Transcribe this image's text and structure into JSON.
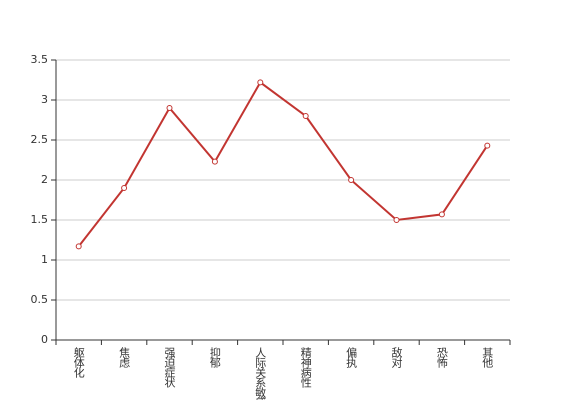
{
  "chart_data": {
    "type": "line",
    "categories": [
      "躯体化",
      "焦虑",
      "强迫症状",
      "抑郁",
      "人际关系敏感",
      "精神病性",
      "偏执",
      "敌对",
      "恐怖",
      "其他"
    ],
    "values": [
      1.17,
      1.9,
      2.9,
      2.23,
      3.22,
      2.8,
      2.0,
      1.5,
      1.57,
      2.43
    ],
    "color": "#c23531",
    "ylim": [
      0,
      3.5
    ],
    "yticks": [
      0,
      0.5,
      1,
      1.5,
      2,
      2.5,
      3,
      3.5
    ],
    "grid": true
  }
}
